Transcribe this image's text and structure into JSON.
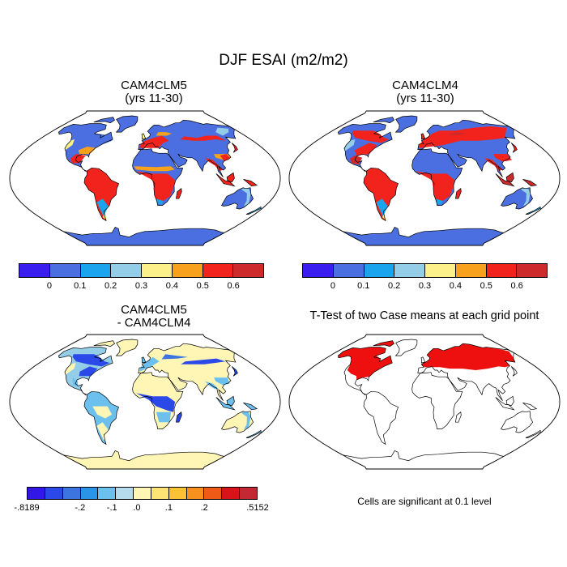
{
  "title": "DJF ESAI (m2/m2)",
  "panels": [
    {
      "title_line1": "CAM4CLM5",
      "title_line2": "(yrs 11-30)"
    },
    {
      "title_line1": "CAM4CLM4",
      "title_line2": "(yrs 11-30)"
    },
    {
      "title_line1": "CAM4CLM5",
      "title_line2": "- CAM4CLM4"
    },
    {
      "title_line1": "T-Test of two Case means at each grid point",
      "title_line2": ""
    }
  ],
  "colorbar_top": {
    "colors": [
      "#3a1ef0",
      "#4a6fe0",
      "#1aa4ee",
      "#94cde8",
      "#fbf08a",
      "#f8a11c",
      "#f2231c",
      "#cd2b2b"
    ],
    "labels": [
      "0",
      "0.1",
      "0.2",
      "0.3",
      "0.4",
      "0.5",
      "0.6"
    ]
  },
  "colorbar_diff": {
    "colors": [
      "#3317e6",
      "#2b48e8",
      "#3c74e0",
      "#2a95e8",
      "#6cc0ee",
      "#b4dcec",
      "#fff6b6",
      "#fde374",
      "#fcc236",
      "#f7901d",
      "#ef5a17",
      "#d8141b",
      "#c42832"
    ],
    "labels": [
      "-.8189",
      "-.2",
      "-.1",
      ".0",
      ".1",
      ".2",
      ".5152"
    ]
  },
  "note": "Cells are significant at 0.1 level",
  "map_colors": {
    "ocean": "#ffffff",
    "outline": "#000000",
    "lowblue": "#4b6fe0",
    "cyan": "#1aa4ee",
    "lightblue": "#94cde8",
    "yellow": "#fbf08a",
    "orange": "#f8a11c",
    "red": "#f2231c",
    "darkred": "#cd2b2b",
    "diffyellow": "#fff6b6",
    "diffblue": "#3c74e0",
    "diffdeep": "#2b48e8",
    "diffcyan": "#6cc0ee",
    "ttest_red": "#ee0f0f"
  }
}
